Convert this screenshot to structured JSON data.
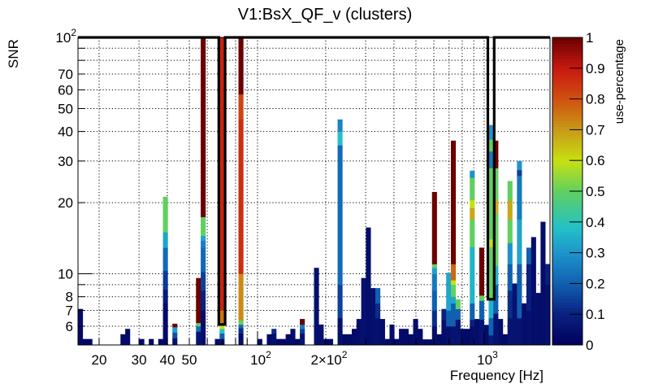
{
  "chart_data": {
    "type": "heatmap",
    "title": "V1:BsX_QF_v (clusters)",
    "xlabel": "Frequency [Hz]",
    "ylabel": "SNR",
    "zlabel": "use-percentage",
    "xscale": "log",
    "yscale": "log",
    "xlim": [
      16.14,
      1952
    ],
    "ylim": [
      5,
      100
    ],
    "zlim": [
      0,
      1
    ],
    "grid": true,
    "x_bins": {
      "n": 100,
      "min": 16.14,
      "max": 1952,
      "spacing": "log"
    },
    "x_ticks": [
      {
        "value": 20,
        "label": "20"
      },
      {
        "value": 30,
        "label": "30"
      },
      {
        "value": 40,
        "label": "40"
      },
      {
        "value": 50,
        "label": "50"
      },
      {
        "value": 100,
        "label": "10",
        "exp": "2"
      },
      {
        "value": 200,
        "label": "2×10",
        "exp": "2"
      },
      {
        "value": 1000,
        "label": "10",
        "exp": "3"
      }
    ],
    "x_grid": [
      20,
      30,
      40,
      50,
      60,
      70,
      80,
      90,
      100,
      200,
      300,
      400,
      500,
      600,
      700,
      800,
      900,
      1000
    ],
    "y_ticks": [
      {
        "value": 6,
        "label": "6"
      },
      {
        "value": 7,
        "label": "7"
      },
      {
        "value": 8,
        "label": "8"
      },
      {
        "value": 10,
        "label": "10"
      },
      {
        "value": 20,
        "label": "20"
      },
      {
        "value": 30,
        "label": "30"
      },
      {
        "value": 40,
        "label": "40"
      },
      {
        "value": 50,
        "label": "50"
      },
      {
        "value": 60,
        "label": "60"
      },
      {
        "value": 70,
        "label": "70"
      },
      {
        "value": 100,
        "label": "10",
        "exp": "2"
      }
    ],
    "y_grid": [
      6,
      7,
      8,
      9,
      10,
      20,
      30,
      40,
      50,
      60,
      70,
      80,
      90
    ],
    "z_ticks": [
      {
        "value": 0,
        "label": "0"
      },
      {
        "value": 0.1,
        "label": "0.1"
      },
      {
        "value": 0.2,
        "label": "0.2"
      },
      {
        "value": 0.3,
        "label": "0.3"
      },
      {
        "value": 0.4,
        "label": "0.4"
      },
      {
        "value": 0.5,
        "label": "0.5"
      },
      {
        "value": 0.6,
        "label": "0.6"
      },
      {
        "value": 0.7,
        "label": "0.7"
      },
      {
        "value": 0.8,
        "label": "0.8"
      },
      {
        "value": 0.9,
        "label": "0.9"
      },
      {
        "value": 1,
        "label": "1"
      }
    ],
    "colormap": [
      [
        0.0,
        "#00005c"
      ],
      [
        0.1,
        "#0a2080"
      ],
      [
        0.2,
        "#1060b0"
      ],
      [
        0.3,
        "#1e94cc"
      ],
      [
        0.38,
        "#22c0c8"
      ],
      [
        0.5,
        "#60d060"
      ],
      [
        0.6,
        "#c8e010"
      ],
      [
        0.7,
        "#c89a18"
      ],
      [
        0.8,
        "#d05010"
      ],
      [
        0.9,
        "#c81810"
      ],
      [
        1.0,
        "#6a0000"
      ]
    ],
    "highlighted_bins": [
      {
        "bin": 30,
        "snr_floor": 6.1
      },
      {
        "bin": 87,
        "snr_floor": 7.8
      }
    ],
    "bars": [
      {
        "bin": 0,
        "segs": [
          [
            7.1,
            0.03
          ]
        ]
      },
      {
        "bin": 1,
        "segs": [
          [
            5.3,
            0.02
          ]
        ]
      },
      {
        "bin": 2,
        "segs": [
          [
            5.3,
            0.02
          ]
        ]
      },
      {
        "bin": 9,
        "segs": [
          [
            5.55,
            0.03
          ]
        ]
      },
      {
        "bin": 10,
        "segs": [
          [
            5.85,
            0.03
          ]
        ]
      },
      {
        "bin": 13,
        "segs": [
          [
            5.3,
            0.03
          ]
        ]
      },
      {
        "bin": 15,
        "segs": [
          [
            5.3,
            0.03
          ]
        ]
      },
      {
        "bin": 17,
        "segs": [
          [
            5.3,
            0.03
          ]
        ]
      },
      {
        "bin": 18,
        "segs": [
          [
            7.5,
            0.03
          ],
          [
            8.6,
            0.08
          ],
          [
            10.3,
            0.14
          ],
          [
            12.9,
            0.22
          ],
          [
            15,
            0.33
          ],
          [
            21.2,
            0.5
          ]
        ]
      },
      {
        "bin": 20,
        "segs": [
          [
            5.35,
            0.05
          ],
          [
            5.65,
            0.18
          ],
          [
            5.95,
            0.32
          ],
          [
            6.15,
            1.0
          ]
        ]
      },
      {
        "bin": 25,
        "segs": [
          [
            5.7,
            0.06
          ],
          [
            6,
            0.22
          ],
          [
            6.2,
            0.5
          ],
          [
            9.6,
            1.0
          ]
        ]
      },
      {
        "bin": 26,
        "segs": [
          [
            7,
            0.04
          ],
          [
            8.5,
            0.1
          ],
          [
            10.2,
            0.15
          ],
          [
            12.9,
            0.22
          ],
          [
            13.8,
            0.26
          ],
          [
            14.5,
            0.33
          ],
          [
            17.4,
            0.5
          ],
          [
            100,
            1.0
          ]
        ]
      },
      {
        "bin": 29,
        "segs": [
          [
            5.3,
            0.03
          ]
        ]
      },
      {
        "bin": 30,
        "segs": [
          [
            5.3,
            0.05
          ],
          [
            5.6,
            0.2
          ],
          [
            5.85,
            0.38
          ],
          [
            6.1,
            0.6
          ],
          [
            7,
            0.75
          ],
          [
            100,
            0.88
          ]
        ]
      },
      {
        "bin": 34,
        "segs": [
          [
            5.6,
            0.04
          ],
          [
            5.9,
            0.12
          ],
          [
            6.1,
            0.22
          ],
          [
            6.35,
            0.5
          ],
          [
            10,
            0.72
          ],
          [
            45,
            0.86
          ],
          [
            57.5,
            0.82
          ],
          [
            100,
            1.0
          ]
        ]
      },
      {
        "bin": 38,
        "segs": [
          [
            5.3,
            0.03
          ]
        ]
      },
      {
        "bin": 40,
        "segs": [
          [
            5.55,
            0.03
          ]
        ]
      },
      {
        "bin": 41,
        "segs": [
          [
            5.6,
            0.05
          ],
          [
            5.85,
            0.12
          ]
        ]
      },
      {
        "bin": 42,
        "segs": [
          [
            5.3,
            0.03
          ]
        ]
      },
      {
        "bin": 43,
        "segs": [
          [
            5.3,
            0.03
          ]
        ]
      },
      {
        "bin": 44,
        "segs": [
          [
            5.55,
            0.03
          ]
        ]
      },
      {
        "bin": 45,
        "segs": [
          [
            5.85,
            0.04
          ]
        ]
      },
      {
        "bin": 46,
        "segs": [
          [
            5.3,
            0.03
          ]
        ]
      },
      {
        "bin": 47,
        "segs": [
          [
            5.6,
            0.06
          ],
          [
            5.85,
            0.15
          ],
          [
            6.1,
            0.25
          ],
          [
            6.44,
            1.0
          ]
        ]
      },
      {
        "bin": 50,
        "segs": [
          [
            10.6,
            0.05
          ]
        ]
      },
      {
        "bin": 51,
        "segs": [
          [
            6.1,
            0.05
          ]
        ]
      },
      {
        "bin": 52,
        "segs": [
          [
            5.3,
            0.03
          ]
        ]
      },
      {
        "bin": 53,
        "segs": [
          [
            5.3,
            0.03
          ]
        ]
      },
      {
        "bin": 55,
        "segs": [
          [
            6.5,
            0.05
          ],
          [
            9,
            0.15
          ],
          [
            35,
            0.22
          ],
          [
            40,
            0.38
          ],
          [
            45,
            0.27
          ]
        ]
      },
      {
        "bin": 56,
        "segs": [
          [
            5.55,
            0.03
          ]
        ]
      },
      {
        "bin": 57,
        "segs": [
          [
            5.55,
            0.03
          ]
        ]
      },
      {
        "bin": 58,
        "segs": [
          [
            5.85,
            0.03
          ]
        ]
      },
      {
        "bin": 59,
        "segs": [
          [
            6.44,
            0.04
          ]
        ]
      },
      {
        "bin": 60,
        "segs": [
          [
            9.6,
            0.05
          ]
        ]
      },
      {
        "bin": 61,
        "segs": [
          [
            15.7,
            0.04
          ]
        ]
      },
      {
        "bin": 62,
        "segs": [
          [
            8.7,
            0.05
          ]
        ]
      },
      {
        "bin": 63,
        "segs": [
          [
            6.5,
            0.05
          ],
          [
            7.5,
            0.12
          ],
          [
            8.7,
            0.2
          ]
        ]
      },
      {
        "bin": 64,
        "segs": [
          [
            6.44,
            0.04
          ]
        ]
      },
      {
        "bin": 65,
        "segs": [
          [
            5.3,
            0.03
          ]
        ]
      },
      {
        "bin": 66,
        "segs": [
          [
            6.1,
            0.04
          ]
        ]
      },
      {
        "bin": 67,
        "segs": [
          [
            5.3,
            0.03
          ]
        ]
      },
      {
        "bin": 68,
        "segs": [
          [
            5.85,
            0.03
          ]
        ]
      },
      {
        "bin": 69,
        "segs": [
          [
            5.85,
            0.03
          ]
        ]
      },
      {
        "bin": 70,
        "segs": [
          [
            5.55,
            0.03
          ]
        ]
      },
      {
        "bin": 71,
        "segs": [
          [
            6.44,
            0.04
          ]
        ]
      },
      {
        "bin": 72,
        "segs": [
          [
            5.85,
            0.03
          ]
        ]
      },
      {
        "bin": 73,
        "segs": [
          [
            5.28,
            0.03
          ]
        ]
      },
      {
        "bin": 74,
        "segs": [
          [
            5.28,
            0.03
          ]
        ]
      },
      {
        "bin": 75,
        "segs": [
          [
            6,
            0.04
          ],
          [
            7,
            0.12
          ],
          [
            8.5,
            0.2
          ],
          [
            10,
            0.25
          ],
          [
            10.6,
            0.32
          ],
          [
            11,
            0.5
          ],
          [
            22.2,
            1.0
          ]
        ]
      },
      {
        "bin": 76,
        "segs": [
          [
            5.55,
            0.03
          ]
        ]
      },
      {
        "bin": 77,
        "segs": [
          [
            6.4,
            0.04
          ],
          [
            7.1,
            0.1
          ]
        ]
      },
      {
        "bin": 78,
        "segs": [
          [
            6,
            0.05
          ],
          [
            7,
            0.2
          ],
          [
            10.1,
            0.33
          ]
        ]
      },
      {
        "bin": 79,
        "segs": [
          [
            6,
            0.06
          ],
          [
            7.5,
            0.2
          ],
          [
            8,
            0.33
          ],
          [
            9,
            0.5
          ],
          [
            9.4,
            0.6
          ],
          [
            11,
            0.77
          ],
          [
            36.6,
            1.0
          ]
        ]
      },
      {
        "bin": 80,
        "segs": [
          [
            6.4,
            0.06
          ],
          [
            7.1,
            0.2
          ],
          [
            7.8,
            0.5
          ]
        ]
      },
      {
        "bin": 81,
        "segs": [
          [
            5.85,
            0.03
          ]
        ]
      },
      {
        "bin": 82,
        "segs": [
          [
            5.85,
            0.03
          ]
        ]
      },
      {
        "bin": 83,
        "segs": [
          [
            6,
            0.04
          ],
          [
            6.4,
            0.1
          ],
          [
            7.5,
            0.2
          ],
          [
            13,
            0.36
          ],
          [
            17,
            0.5
          ],
          [
            19,
            0.68
          ],
          [
            20.5,
            0.6
          ],
          [
            25.5,
            0.5
          ],
          [
            27.3,
            0.3
          ]
        ]
      },
      {
        "bin": 84,
        "segs": [
          [
            6.44,
            0.04
          ]
        ]
      },
      {
        "bin": 85,
        "segs": [
          [
            6.4,
            0.06
          ],
          [
            7.7,
            0.2
          ],
          [
            8.1,
            0.5
          ],
          [
            12.9,
            1.0
          ]
        ]
      },
      {
        "bin": 86,
        "segs": [
          [
            6.08,
            0.04
          ]
        ]
      },
      {
        "bin": 87,
        "segs": [
          [
            5.5,
            0.08
          ],
          [
            6.5,
            0.2
          ],
          [
            7.8,
            0.35
          ],
          [
            13,
            0.5
          ],
          [
            14,
            0.6
          ],
          [
            28,
            0.5
          ],
          [
            33,
            0.25
          ],
          [
            37,
            0.5
          ],
          [
            42.6,
            0.3
          ]
        ]
      },
      {
        "bin": 88,
        "segs": [
          [
            6.8,
            0.06
          ],
          [
            9,
            0.2
          ],
          [
            10.8,
            0.35
          ],
          [
            18,
            0.5
          ],
          [
            20.5,
            0.68
          ],
          [
            28,
            0.5
          ],
          [
            36.6,
            1.0
          ]
        ]
      },
      {
        "bin": 89,
        "segs": [
          [
            6.44,
            0.04
          ]
        ]
      },
      {
        "bin": 90,
        "segs": [
          [
            5.55,
            0.03
          ]
        ]
      },
      {
        "bin": 91,
        "segs": [
          [
            6.5,
            0.06
          ],
          [
            8.5,
            0.12
          ],
          [
            11,
            0.2
          ],
          [
            13.5,
            0.3
          ],
          [
            17,
            0.5
          ],
          [
            20.5,
            0.68
          ],
          [
            24.7,
            0.5
          ]
        ]
      },
      {
        "bin": 92,
        "segs": [
          [
            9.1,
            0.06
          ]
        ]
      },
      {
        "bin": 93,
        "segs": [
          [
            6.5,
            0.06
          ],
          [
            11,
            0.2
          ],
          [
            17,
            0.33
          ],
          [
            26,
            0.25
          ],
          [
            27.5,
            0.15
          ],
          [
            30,
            0.3
          ]
        ]
      },
      {
        "bin": 94,
        "segs": [
          [
            7.5,
            0.04
          ]
        ]
      },
      {
        "bin": 95,
        "segs": [
          [
            7,
            0.05
          ],
          [
            11,
            0.1
          ],
          [
            12.9,
            0.2
          ]
        ]
      },
      {
        "bin": 96,
        "segs": [
          [
            14.3,
            0.04
          ]
        ]
      },
      {
        "bin": 97,
        "segs": [
          [
            8.3,
            0.04
          ]
        ]
      },
      {
        "bin": 98,
        "segs": [
          [
            16.6,
            0.04
          ]
        ]
      },
      {
        "bin": 99,
        "segs": [
          [
            9,
            0.05
          ],
          [
            11,
            0.1
          ]
        ]
      }
    ]
  }
}
